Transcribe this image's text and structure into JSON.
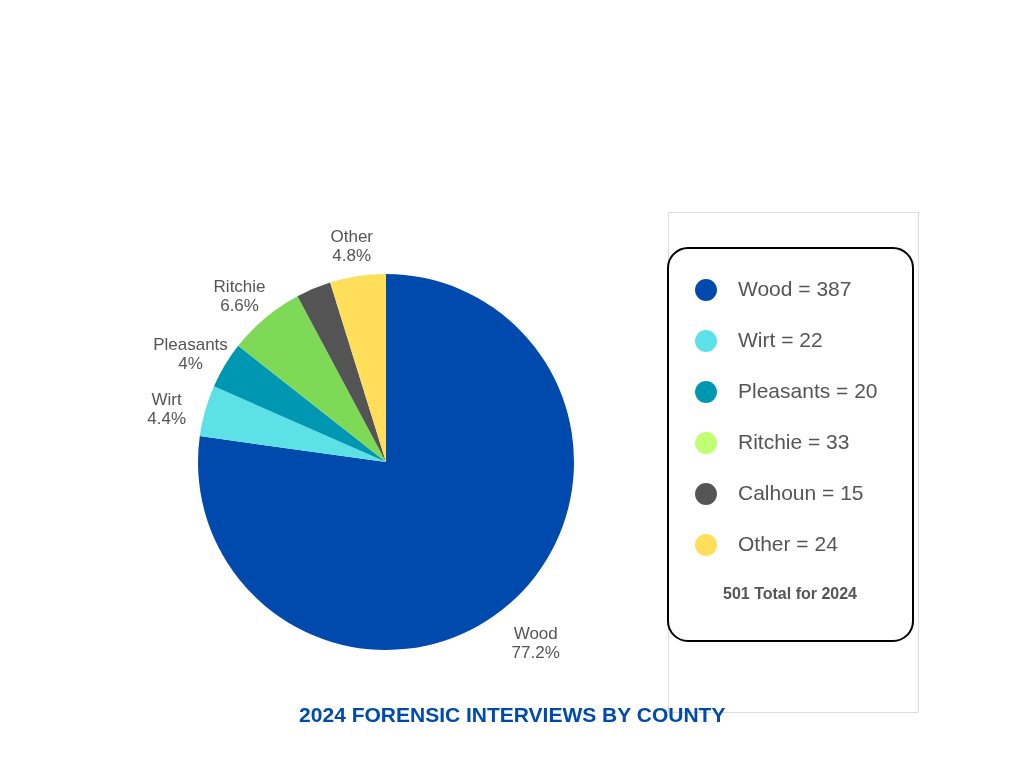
{
  "chart_data": [
    {
      "type": "pie",
      "title": "2024 FORENSIC INTERVIEWS BY COUNTY",
      "categories": [
        "Wood",
        "Wirt",
        "Pleasants",
        "Ritchie",
        null,
        "Other"
      ],
      "values": [
        77.2,
        4.4,
        4,
        6.6,
        3.0,
        4.8
      ],
      "colors": [
        "#004aad",
        "#5ce1e6",
        "#0097b2",
        "#7ed957",
        "#545454",
        "#ffde59"
      ],
      "value_labels": [
        "77.2%",
        "4.4%",
        "4%",
        "6.6%",
        null,
        "4.8%"
      ]
    },
    {
      "type": "other",
      "categories": [
        "Wood = 387",
        "Wirt = 22",
        "Pleasants = 20",
        "Ritchie = 33",
        "Calhoun = 15",
        "Other = 24"
      ],
      "colors": [
        "#004aad",
        "#5ce1e6",
        "#0097b2",
        "#c1ff72",
        "#545454",
        "#ffde59"
      ],
      "annotations": [
        "501  Total for 2024"
      ]
    }
  ]
}
